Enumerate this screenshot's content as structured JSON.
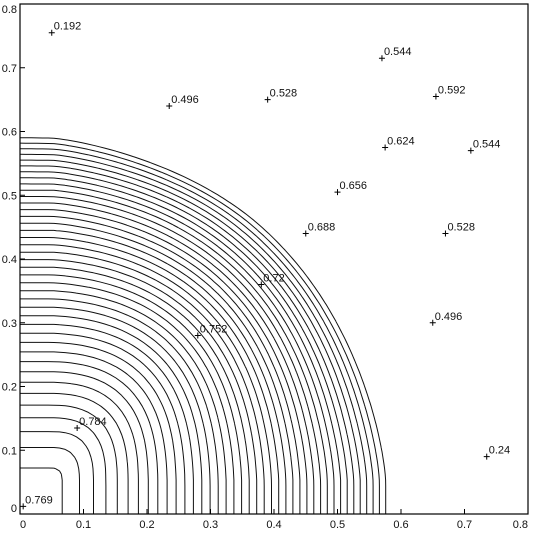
{
  "chart_data": {
    "type": "contour",
    "title": "",
    "xlabel": "",
    "ylabel": "",
    "xlim": [
      0,
      0.8
    ],
    "ylim": [
      0,
      0.8
    ],
    "grid": false,
    "x_ticks": [
      0,
      0.1,
      0.2,
      0.3,
      0.4,
      0.5,
      0.6,
      0.7,
      0.8
    ],
    "x_tick_labels": [
      "0",
      "0.1",
      "0.2",
      "0.3",
      "0.4",
      "0.5",
      "0.6",
      "0.7",
      "0.8"
    ],
    "y_ticks": [
      0,
      0.1,
      0.2,
      0.3,
      0.4,
      0.5,
      0.6,
      0.7,
      0.8
    ],
    "y_tick_labels": [
      "0",
      "0.1",
      "0.2",
      "0.3",
      "0.4",
      "0.5",
      "0.6",
      "0.7",
      "0.8"
    ],
    "contour_labels": [
      {
        "text": "0.192",
        "x": 0.05,
        "y": 0.755
      },
      {
        "text": "0.544",
        "x": 0.57,
        "y": 0.715
      },
      {
        "text": "0.592",
        "x": 0.655,
        "y": 0.655
      },
      {
        "text": "0.496",
        "x": 0.235,
        "y": 0.64
      },
      {
        "text": "0.528",
        "x": 0.39,
        "y": 0.65
      },
      {
        "text": "0.624",
        "x": 0.575,
        "y": 0.575
      },
      {
        "text": "0.544",
        "x": 0.71,
        "y": 0.57
      },
      {
        "text": "0.656",
        "x": 0.5,
        "y": 0.505
      },
      {
        "text": "0.688",
        "x": 0.45,
        "y": 0.44
      },
      {
        "text": "0.528",
        "x": 0.67,
        "y": 0.44
      },
      {
        "text": "0.72",
        "x": 0.38,
        "y": 0.36
      },
      {
        "text": "0.496",
        "x": 0.65,
        "y": 0.3
      },
      {
        "text": "0.752",
        "x": 0.28,
        "y": 0.28
      },
      {
        "text": "0.784",
        "x": 0.09,
        "y": 0.135
      },
      {
        "text": "0.24",
        "x": 0.735,
        "y": 0.09
      },
      {
        "text": "0.769",
        "x": 0.005,
        "y": 0.012
      }
    ]
  }
}
